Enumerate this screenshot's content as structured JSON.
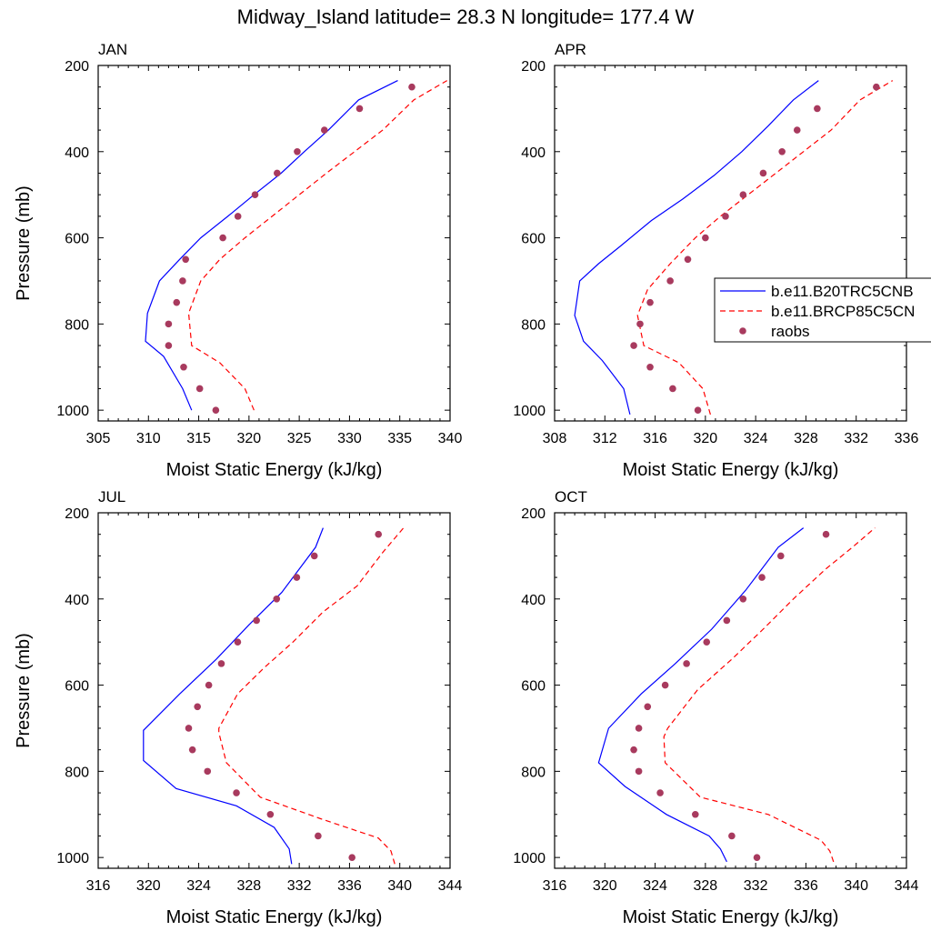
{
  "figure": {
    "title": "Midway_Island  latitude= 28.3 N longitude= 177.4 W"
  },
  "colors": {
    "model_1": "#0000ff",
    "model_2": "#ff0000",
    "raobs": "#a83a5e"
  },
  "legend": {
    "placement": "right of APR panel",
    "entries": [
      {
        "label": "b.e11.B20TRC5CNB",
        "style": "solid",
        "color": "#0000ff"
      },
      {
        "label": "b.e11.BRCP85C5CN",
        "style": "dashed",
        "color": "#ff0000"
      },
      {
        "label": "raobs",
        "style": "dots",
        "color": "#a83a5e"
      }
    ]
  },
  "chart_data": [
    {
      "type": "line",
      "title": "JAN",
      "xlabel": "Moist Static Energy (kJ/kg)",
      "ylabel": "Pressure (mb)",
      "xlim": [
        305,
        340
      ],
      "ylim": [
        1025,
        200
      ],
      "xticks": [
        305,
        310,
        315,
        320,
        325,
        330,
        335,
        340
      ],
      "yticks": [
        200,
        400,
        600,
        800,
        1000
      ],
      "series": [
        {
          "name": "b.e11.B20TRC5CNB",
          "style": "solid",
          "color": "#0000ff",
          "x": [
            314.3,
            313.4,
            311.5,
            309.7,
            309.9,
            311.1,
            313.1,
            315.2,
            317.9,
            320.5,
            323.2,
            325.5,
            327.9,
            330.9,
            334.8
          ],
          "y": [
            1000,
            950,
            875,
            840,
            775,
            700,
            650,
            600,
            550,
            500,
            450,
            400,
            350,
            280,
            235
          ]
        },
        {
          "name": "b.e11.BRCP85C5CN",
          "style": "dashed",
          "color": "#ff0000",
          "x": [
            320.5,
            319.6,
            317.1,
            314.3,
            314.0,
            315.2,
            317.1,
            319.6,
            322.3,
            325.0,
            327.7,
            330.5,
            333.3,
            336.4,
            339.7
          ],
          "y": [
            1000,
            950,
            890,
            850,
            775,
            700,
            650,
            600,
            550,
            500,
            450,
            400,
            350,
            280,
            235
          ]
        }
      ],
      "raobs": {
        "x": [
          316.7,
          315.1,
          313.5,
          312.0,
          312.0,
          312.8,
          313.4,
          313.7,
          317.4,
          318.9,
          320.6,
          322.8,
          324.8,
          327.5,
          331.0,
          336.2
        ],
        "y": [
          1000,
          950,
          900,
          850,
          800,
          750,
          700,
          650,
          600,
          550,
          500,
          450,
          400,
          350,
          300,
          250
        ]
      }
    },
    {
      "type": "line",
      "title": "APR",
      "xlabel": "Moist Static Energy (kJ/kg)",
      "ylabel": "Pressure (mb)",
      "xlim": [
        308,
        336
      ],
      "ylim": [
        1025,
        200
      ],
      "xticks": [
        308,
        312,
        316,
        320,
        324,
        328,
        332,
        336
      ],
      "yticks": [
        200,
        400,
        600,
        800,
        1000
      ],
      "series": [
        {
          "name": "b.e11.B20TRC5CNB",
          "style": "solid",
          "color": "#0000ff",
          "x": [
            314.0,
            313.5,
            311.8,
            310.3,
            309.6,
            310.0,
            311.5,
            313.2,
            315.7,
            318.2,
            320.7,
            322.9,
            325.0,
            327.0,
            329.0
          ],
          "y": [
            1010,
            950,
            885,
            840,
            780,
            700,
            660,
            620,
            560,
            510,
            455,
            400,
            340,
            280,
            235
          ]
        },
        {
          "name": "b.e11.BRCP85C5CN",
          "style": "dashed",
          "color": "#ff0000",
          "x": [
            320.4,
            319.8,
            317.9,
            315.1,
            314.6,
            315.4,
            317.2,
            319.2,
            321.2,
            323.4,
            325.6,
            327.8,
            330.0,
            332.3,
            334.9
          ],
          "y": [
            1010,
            950,
            890,
            850,
            780,
            720,
            660,
            600,
            550,
            500,
            450,
            400,
            350,
            280,
            235
          ]
        }
      ],
      "raobs": {
        "x": [
          319.4,
          317.4,
          315.6,
          314.3,
          314.8,
          315.6,
          317.2,
          318.6,
          320.0,
          321.6,
          323.0,
          324.6,
          326.1,
          327.3,
          328.9,
          333.6
        ],
        "y": [
          1000,
          950,
          900,
          850,
          800,
          750,
          700,
          650,
          600,
          550,
          500,
          450,
          400,
          350,
          300,
          250
        ]
      }
    },
    {
      "type": "line",
      "title": "JUL",
      "xlabel": "Moist Static Energy (kJ/kg)",
      "ylabel": "Pressure (mb)",
      "xlim": [
        316,
        344
      ],
      "ylim": [
        1025,
        200
      ],
      "xticks": [
        316,
        320,
        324,
        328,
        332,
        336,
        340,
        344
      ],
      "yticks": [
        200,
        400,
        600,
        800,
        1000
      ],
      "series": [
        {
          "name": "b.e11.B20TRC5CNB",
          "style": "solid",
          "color": "#0000ff",
          "x": [
            331.4,
            331.2,
            330.0,
            327.0,
            322.2,
            319.6,
            319.6,
            322.5,
            325.4,
            328.0,
            330.6,
            333.3,
            333.9
          ],
          "y": [
            1015,
            980,
            930,
            880,
            840,
            775,
            705,
            620,
            540,
            460,
            385,
            280,
            235
          ]
        },
        {
          "name": "b.e11.BRCP85C5CN",
          "style": "dashed",
          "color": "#ff0000",
          "x": [
            339.6,
            339.3,
            338.3,
            333.7,
            328.9,
            326.2,
            325.6,
            325.6,
            327.1,
            329.2,
            331.5,
            333.9,
            336.6,
            338.7,
            340.3
          ],
          "y": [
            1015,
            985,
            955,
            910,
            860,
            780,
            710,
            700,
            620,
            560,
            500,
            430,
            370,
            290,
            235
          ]
        }
      ],
      "raobs": {
        "x": [
          336.2,
          333.5,
          329.7,
          327.0,
          324.7,
          323.5,
          323.2,
          323.9,
          324.8,
          325.8,
          327.1,
          328.6,
          330.2,
          331.8,
          333.2,
          338.3
        ],
        "y": [
          1000,
          950,
          900,
          850,
          800,
          750,
          700,
          650,
          600,
          550,
          500,
          450,
          400,
          350,
          300,
          250
        ]
      }
    },
    {
      "type": "line",
      "title": "OCT",
      "xlabel": "Moist Static Energy (kJ/kg)",
      "ylabel": "Pressure (mb)",
      "xlim": [
        316,
        344
      ],
      "ylim": [
        1025,
        200
      ],
      "xticks": [
        316,
        320,
        324,
        328,
        332,
        336,
        340,
        344
      ],
      "yticks": [
        200,
        400,
        600,
        800,
        1000
      ],
      "series": [
        {
          "name": "b.e11.B20TRC5CNB",
          "style": "solid",
          "color": "#0000ff",
          "x": [
            329.7,
            329.2,
            328.3,
            324.9,
            321.6,
            319.5,
            320.3,
            322.9,
            325.6,
            328.5,
            331.2,
            333.8,
            335.8
          ],
          "y": [
            1010,
            980,
            950,
            900,
            835,
            780,
            700,
            620,
            550,
            470,
            380,
            280,
            235
          ]
        },
        {
          "name": "b.e11.BRCP85C5CN",
          "style": "dashed",
          "color": "#ff0000",
          "x": [
            338.2,
            337.9,
            337.2,
            333.0,
            327.6,
            324.8,
            324.7,
            325.0,
            327.4,
            330.1,
            332.6,
            335.0,
            337.6,
            339.7,
            341.5
          ],
          "y": [
            1010,
            985,
            960,
            900,
            860,
            780,
            720,
            700,
            610,
            540,
            470,
            400,
            330,
            280,
            235
          ]
        }
      ],
      "raobs": {
        "x": [
          332.1,
          330.1,
          327.2,
          324.4,
          322.7,
          322.3,
          322.7,
          323.4,
          324.8,
          326.5,
          328.1,
          329.7,
          331.0,
          332.5,
          334.0,
          337.6
        ],
        "y": [
          1000,
          950,
          900,
          850,
          800,
          750,
          700,
          650,
          600,
          550,
          500,
          450,
          400,
          350,
          300,
          250
        ]
      }
    }
  ]
}
